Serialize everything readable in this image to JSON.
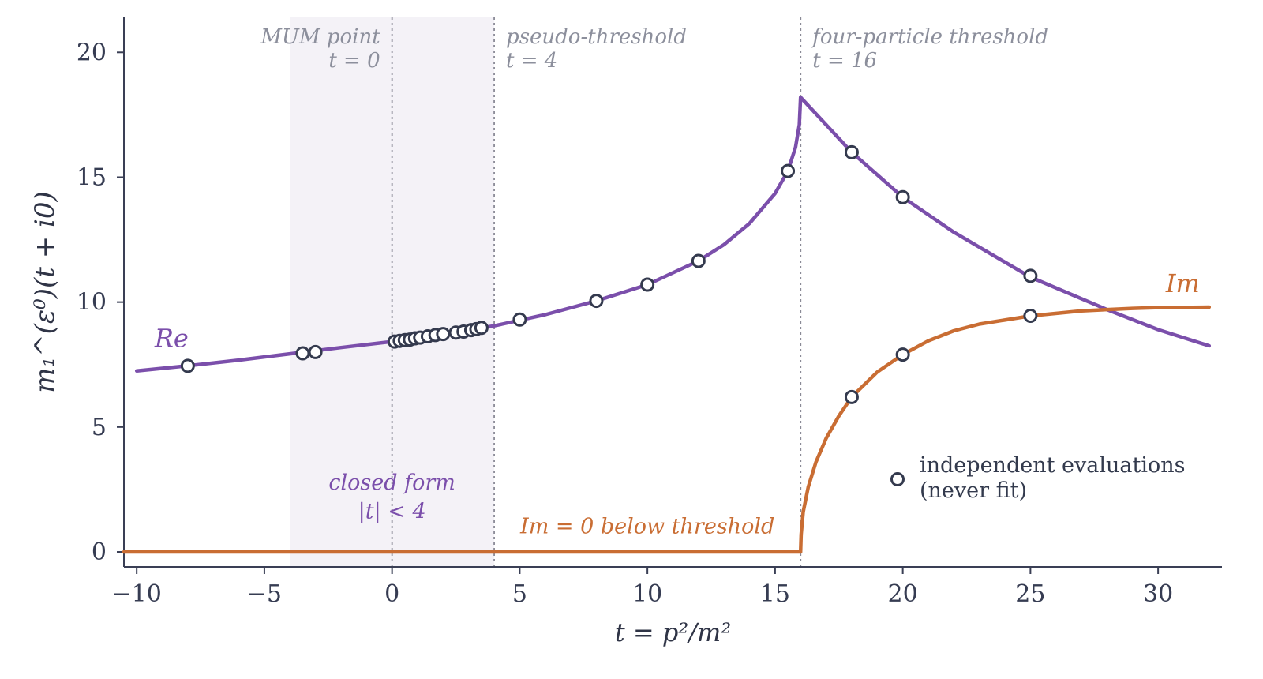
{
  "chart_data": {
    "type": "line",
    "xlabel": "t = p²/m²",
    "ylabel": "m₁^(ε⁰)(t + i0)",
    "xlim": [
      -10.5,
      32.5
    ],
    "ylim": [
      -0.6,
      21.4
    ],
    "xticks": [
      -10,
      -5,
      0,
      5,
      10,
      15,
      20,
      25,
      30
    ],
    "yticks": [
      0,
      5,
      10,
      15,
      20
    ],
    "xtick_labels": [
      "−10",
      "−5",
      "0",
      "5",
      "10",
      "15",
      "20",
      "25",
      "30"
    ],
    "ytick_labels": [
      "0",
      "5",
      "10",
      "15",
      "20"
    ],
    "grid": false,
    "shaded_region": {
      "x_range": [
        -4,
        4
      ],
      "color": "#f4f2f7"
    },
    "vertical_lines": [
      {
        "x": 0,
        "label": "MUM point",
        "sublabel": "t = 0",
        "align": "right"
      },
      {
        "x": 4,
        "label": "pseudo-threshold",
        "sublabel": "t = 4",
        "align": "left"
      },
      {
        "x": 16,
        "label": "four-particle threshold",
        "sublabel": "t = 16",
        "align": "left"
      }
    ],
    "series": [
      {
        "name": "Re",
        "color": "#7b4fab",
        "x": [
          -10,
          -8,
          -6,
          -4,
          -2,
          0,
          2,
          4,
          6,
          8,
          10,
          12,
          13,
          14,
          15,
          15.5,
          15.8,
          15.95,
          16,
          18,
          20,
          22,
          25,
          28,
          30,
          32
        ],
        "y": [
          7.25,
          7.45,
          7.68,
          7.93,
          8.18,
          8.42,
          8.72,
          9.05,
          9.5,
          10.05,
          10.7,
          11.65,
          12.3,
          13.15,
          14.35,
          15.25,
          16.2,
          17.1,
          18.2,
          16.0,
          14.2,
          12.8,
          11.0,
          9.7,
          8.9,
          8.25
        ]
      },
      {
        "name": "Im",
        "color": "#c96d33",
        "x": [
          -10.5,
          16,
          16.02,
          16.1,
          16.3,
          16.6,
          17,
          17.5,
          18,
          19,
          20,
          21,
          22,
          23,
          25,
          27,
          29,
          30,
          32
        ],
        "y": [
          0,
          0,
          0.7,
          1.6,
          2.6,
          3.6,
          4.55,
          5.45,
          6.2,
          7.2,
          7.9,
          8.45,
          8.85,
          9.12,
          9.45,
          9.65,
          9.75,
          9.78,
          9.8
        ]
      }
    ],
    "markers": {
      "label": "independent evaluations (never fit)",
      "points": [
        [
          -8,
          7.45
        ],
        [
          -3.5,
          7.95
        ],
        [
          -3,
          8.0
        ],
        [
          0.1,
          8.42
        ],
        [
          0.3,
          8.45
        ],
        [
          0.5,
          8.48
        ],
        [
          0.7,
          8.5
        ],
        [
          0.9,
          8.55
        ],
        [
          1.1,
          8.58
        ],
        [
          1.4,
          8.63
        ],
        [
          1.7,
          8.68
        ],
        [
          2.0,
          8.72
        ],
        [
          2.5,
          8.78
        ],
        [
          2.8,
          8.82
        ],
        [
          3.1,
          8.88
        ],
        [
          3.3,
          8.92
        ],
        [
          3.5,
          8.97
        ],
        [
          5,
          9.3
        ],
        [
          8,
          10.05
        ],
        [
          10,
          10.7
        ],
        [
          12,
          11.65
        ],
        [
          15.5,
          15.25
        ],
        [
          18,
          16.0
        ],
        [
          20,
          14.2
        ],
        [
          25,
          11.05
        ],
        [
          18,
          6.2
        ],
        [
          20,
          7.9
        ],
        [
          25,
          9.45
        ]
      ]
    },
    "annotations": [
      {
        "text": "Re",
        "x": -9.3,
        "y": 8.2,
        "color": "#7b4fab"
      },
      {
        "text": "Im",
        "x": 30.3,
        "y": 10.4,
        "color": "#c96d33"
      },
      {
        "text": "Im = 0 below threshold",
        "x": 10,
        "y": 0.75,
        "color": "#c96d33"
      },
      {
        "text": "closed form",
        "x": 0,
        "y": 2.5,
        "color": "#7b4fab"
      },
      {
        "text": "|t| < 4",
        "x": 0,
        "y": 1.35,
        "color": "#7b4fab"
      }
    ],
    "legend": {
      "position": "lower-right",
      "lines": [
        "independent evaluations",
        "(never fit)"
      ]
    }
  }
}
